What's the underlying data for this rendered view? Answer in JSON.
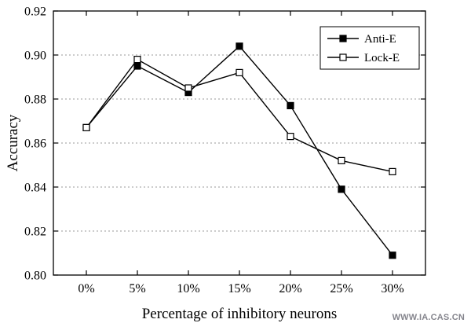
{
  "chart_data": {
    "type": "line",
    "title": "",
    "xlabel": "Percentage of inhibitory neurons",
    "ylabel": "Accuracy",
    "categories": [
      "0%",
      "5%",
      "10%",
      "15%",
      "20%",
      "25%",
      "30%"
    ],
    "series": [
      {
        "name": "Anti-E",
        "marker": "filled-square",
        "color": "#000000",
        "values": [
          0.867,
          0.895,
          0.883,
          0.904,
          0.877,
          0.839,
          0.809
        ]
      },
      {
        "name": "Lock-E",
        "marker": "open-square",
        "color": "#000000",
        "values": [
          0.867,
          0.898,
          0.885,
          0.892,
          0.863,
          0.852,
          0.847
        ]
      }
    ],
    "ylim": [
      0.8,
      0.92
    ],
    "yticks": [
      0.8,
      0.82,
      0.84,
      0.86,
      0.88,
      0.9,
      0.92
    ],
    "grid": "horizontal-dashed",
    "legend_position": "top-right"
  },
  "watermark": {
    "text": "WWW.IA.CAS.CN"
  },
  "colors": {
    "line": "#000000",
    "grid": "#9a9a9a",
    "plot_border": "#000000",
    "watermark": "#85858d",
    "background": "#ffffff"
  }
}
